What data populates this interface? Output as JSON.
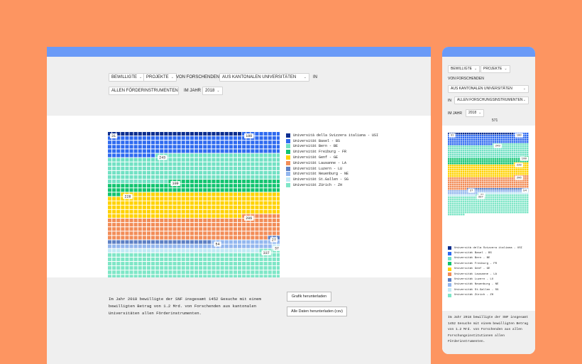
{
  "colors": {
    "background": "#fd9561",
    "topbar": "#6a9af7",
    "panel": "#efefef"
  },
  "filters": {
    "metric": "BEWILLIGTE",
    "type": "PROJEKTE",
    "von_label": "VON FORSCHENDEN",
    "institution": "AUS KANTONALEN UNIVERSITÄTEN",
    "in_label": "IN",
    "instrument_desktop": "ALLEN FÖRDERINSTRUMENTEN",
    "instrument_mobile": "ALLEN FORSCHUNGSINSTRUMENTEN",
    "year_label": "IM JAHR",
    "year": "2018",
    "total_mobile": "571"
  },
  "chart_data": {
    "type": "waffle",
    "unit": "Projekte",
    "series": [
      {
        "name": "Università della Svizzera italiana - USI",
        "value": 31,
        "color": "#0c2e8f"
      },
      {
        "name": "Universität Basel - BS",
        "value": 180,
        "color": "#2f6bf0"
      },
      {
        "name": "Universität Bern - BE",
        "value": 243,
        "color": "#72e1c4"
      },
      {
        "name": "Universität Freiburg - FR",
        "value": 109,
        "color": "#12c470"
      },
      {
        "name": "Universität Genf - GE",
        "value": 228,
        "color": "#ffd200"
      },
      {
        "name": "Universität Lausanne - LA",
        "value": 206,
        "color": "#f28d58"
      },
      {
        "name": "Universität Luzern - LU",
        "value": 27,
        "color": "#5d80c4"
      },
      {
        "name": "Universität Neuenburg - NE",
        "value": 54,
        "color": "#93b7ee"
      },
      {
        "name": "Universität St.Gallen - SG",
        "value": 37,
        "color": "#c3e9f5"
      },
      {
        "name": "Universität Zürich - ZH",
        "value": 337,
        "color": "#7fe6c7"
      }
    ]
  },
  "summary": {
    "desktop": "Im Jahr 2018 bewilligte der SNF insgesamt 1452 Gesuche mit einem bewilligten Betrag von 1.2 Mrd. von Forschenden aus kantonalen Universitäten allen Förderinstrumenten.",
    "mobile": "Im Jahr 2018 bewilligte der SNF insgesamt 1452 Gesuche mit einem bewilligten Betrag von 1.2 Mrd. von Forschenden aus allen Forschungsinstitutionen allen Förderinstrumenten."
  },
  "buttons": {
    "download_chart": "Grafik herunterladen",
    "download_data": "Alle Daten herunterladen (csv)"
  }
}
